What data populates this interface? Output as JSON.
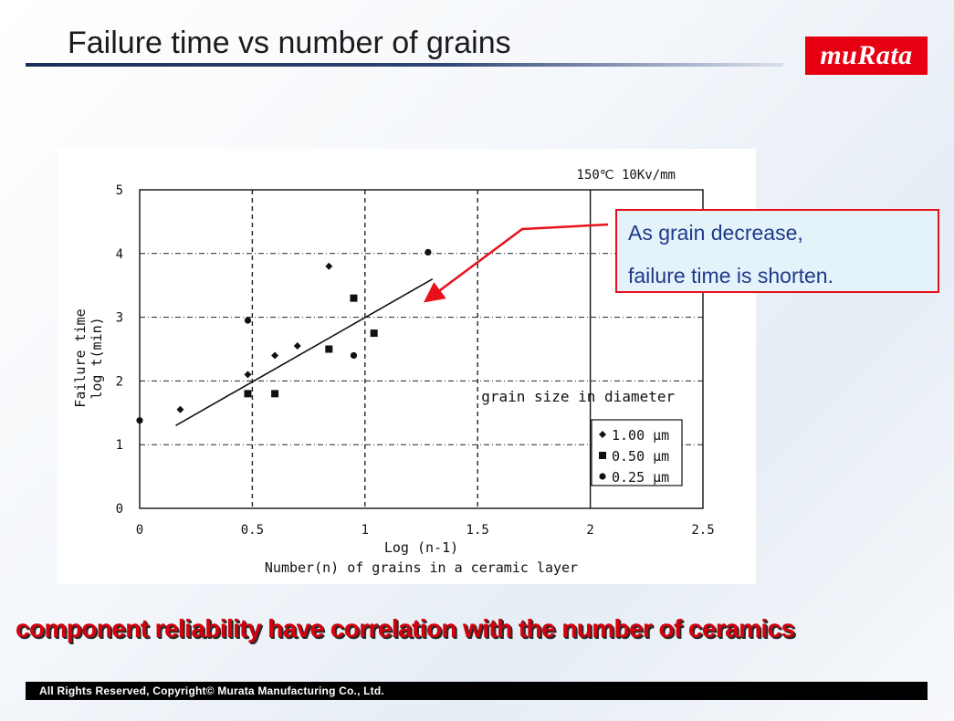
{
  "slide": {
    "title": "Failure time vs number of grains",
    "logo_text": "muRata",
    "callout": {
      "line1": "As grain decrease,",
      "line2": "failure time is shorten."
    },
    "conclusion": "component reliability have correlation with the number of ceramics",
    "footer": "All Rights Reserved, Copyright© Murata Manufacturing Co., Ltd."
  },
  "colors": {
    "brand": "#e60012",
    "title_rule": "#1e2e5a",
    "callout_text": "#1f3a8a",
    "conclusion": "#d4000c"
  },
  "chart_data": {
    "type": "scatter",
    "title": "150℃ 10Kv/mm",
    "xlabel": "Log (n-1)",
    "xlabel2": "Number(n) of grains in a ceramic layer",
    "ylabel": "Failure time",
    "ylabel2": "log t(min)",
    "xlim": [
      0,
      2.5
    ],
    "ylim": [
      0,
      5
    ],
    "xticks": [
      "0",
      "0.5",
      "1",
      "1.5",
      "2",
      "2.5"
    ],
    "yticks": [
      "0",
      "1",
      "2",
      "3",
      "4",
      "5"
    ],
    "grid": "dashed",
    "legend_title": "grain size in diameter",
    "legend_position": "right",
    "series": [
      {
        "name": "1.00 μm",
        "marker": "diamond",
        "points": [
          [
            0.18,
            1.55
          ],
          [
            0.48,
            2.1
          ],
          [
            0.6,
            2.4
          ],
          [
            0.7,
            2.55
          ],
          [
            0.84,
            3.8
          ]
        ]
      },
      {
        "name": "0.50 μm",
        "marker": "square",
        "points": [
          [
            0.48,
            1.8
          ],
          [
            0.6,
            1.8
          ],
          [
            0.84,
            2.5
          ],
          [
            0.95,
            3.3
          ],
          [
            1.04,
            2.75
          ]
        ]
      },
      {
        "name": "0.25 μm",
        "marker": "circle",
        "points": [
          [
            0.0,
            1.38
          ],
          [
            0.48,
            2.95
          ],
          [
            0.95,
            2.4
          ],
          [
            1.28,
            4.02
          ]
        ]
      }
    ],
    "trend_line": [
      [
        0.16,
        1.3
      ],
      [
        1.3,
        3.6
      ]
    ],
    "threshold_line_x": 2.0
  }
}
